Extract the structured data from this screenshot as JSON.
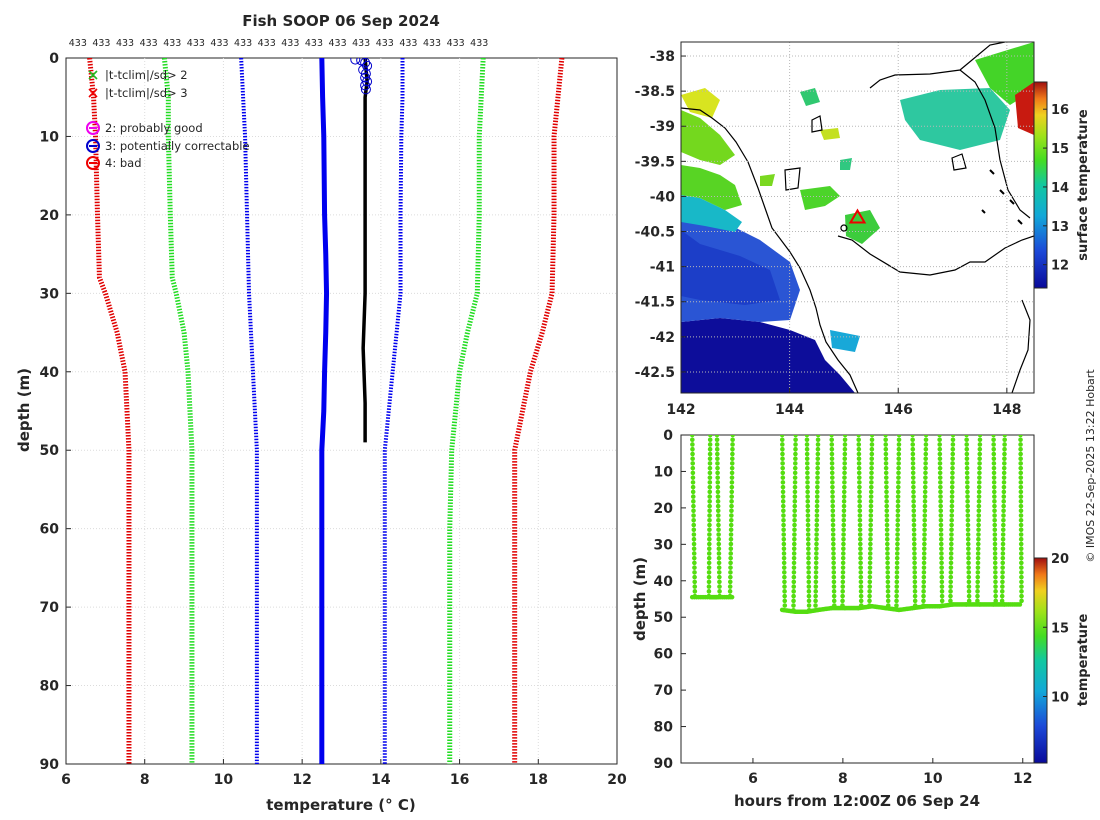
{
  "title": "Fish SOOP 06 Sep 2024",
  "credit": "© IMOS 22-Sep-2025 13:22 Hobart",
  "colors": {
    "clim_sd3": "#e00000",
    "clim_sd2": "#22dd22",
    "clim_mean": "#0000ee",
    "profile": "#000000",
    "flag_good": "#ee00ee",
    "flag_correctable": "#0000cc",
    "flag_bad": "#ee0000",
    "ocean_blank": "#ffffff",
    "land": "#ffffff",
    "track_points": "#55dd11"
  },
  "chart_data": [
    {
      "id": "profile",
      "type": "line",
      "title": "Fish SOOP 06 Sep 2024",
      "xlabel": "temperature (° C)",
      "ylabel": "depth (m)",
      "xlim": [
        6,
        20
      ],
      "ylim": [
        0,
        90
      ],
      "y_reversed": true,
      "grid": true,
      "xticks": [
        6,
        8,
        10,
        12,
        14,
        16,
        18,
        20
      ],
      "yticks": [
        0,
        10,
        20,
        30,
        40,
        50,
        60,
        70,
        80,
        90
      ],
      "top_counts": [
        "433",
        "433",
        "433",
        "433",
        "433",
        "433",
        "433",
        "433",
        "433",
        "433",
        "433",
        "433",
        "433",
        "433",
        "433",
        "433",
        "433",
        "433"
      ],
      "top_counts_x": [
        6.3,
        6.9,
        7.5,
        8.1,
        8.7,
        9.3,
        9.9,
        10.5,
        11.1,
        11.7,
        12.3,
        12.9,
        13.5,
        14.1,
        14.7,
        15.3,
        15.9,
        16.5
      ],
      "legend": {
        "position": "top-left",
        "entries": [
          {
            "label": "|t-tclim|/sd> 2",
            "marker": "x",
            "color": "#22bb22"
          },
          {
            "label": "|t-tclim|/sd> 3",
            "marker": "x",
            "color": "#ee0000"
          },
          {
            "label": "2: probably good",
            "marker": "circle",
            "color": "#ee00ee"
          },
          {
            "label": "3: potentially correctable",
            "marker": "circle",
            "color": "#0000cc"
          },
          {
            "label": "4: bad",
            "marker": "circle",
            "color": "#ee0000"
          }
        ]
      },
      "series": [
        {
          "name": "clim -3sd",
          "style": "sd3",
          "depth": [
            0,
            5,
            10,
            20,
            28,
            30,
            35,
            40,
            45,
            50,
            60,
            70,
            80,
            90
          ],
          "temp": [
            6.6,
            6.7,
            6.75,
            6.8,
            6.85,
            7.0,
            7.3,
            7.5,
            7.55,
            7.6,
            7.6,
            7.6,
            7.6,
            7.6
          ]
        },
        {
          "name": "clim -2sd",
          "style": "sd2",
          "depth": [
            0,
            5,
            10,
            20,
            28,
            30,
            35,
            40,
            45,
            50,
            60,
            70,
            80,
            90
          ],
          "temp": [
            8.5,
            8.6,
            8.6,
            8.65,
            8.7,
            8.8,
            9.0,
            9.1,
            9.15,
            9.2,
            9.2,
            9.2,
            9.2,
            9.2
          ]
        },
        {
          "name": "clim -1sd",
          "style": "mean_dots",
          "depth": [
            0,
            5,
            10,
            20,
            30,
            35,
            40,
            45,
            50,
            60,
            70,
            80,
            90
          ],
          "temp": [
            10.45,
            10.5,
            10.55,
            10.6,
            10.65,
            10.7,
            10.75,
            10.8,
            10.85,
            10.85,
            10.85,
            10.85,
            10.85
          ]
        },
        {
          "name": "clim mean",
          "style": "mean",
          "depth": [
            0,
            5,
            10,
            20,
            25,
            30,
            35,
            40,
            45,
            50,
            60,
            70,
            80,
            90
          ],
          "temp": [
            12.5,
            12.52,
            12.55,
            12.57,
            12.6,
            12.62,
            12.6,
            12.57,
            12.55,
            12.5,
            12.5,
            12.5,
            12.5,
            12.5
          ]
        },
        {
          "name": "clim +1sd",
          "style": "mean_dots",
          "depth": [
            0,
            5,
            10,
            20,
            30,
            35,
            40,
            45,
            50,
            60,
            70,
            80,
            90
          ],
          "temp": [
            14.55,
            14.55,
            14.52,
            14.5,
            14.5,
            14.4,
            14.3,
            14.2,
            14.1,
            14.1,
            14.1,
            14.1,
            14.1
          ]
        },
        {
          "name": "clim +2sd",
          "style": "sd2",
          "depth": [
            0,
            5,
            10,
            20,
            30,
            35,
            40,
            45,
            50,
            60,
            70,
            80,
            90
          ],
          "temp": [
            16.6,
            16.55,
            16.5,
            16.5,
            16.45,
            16.2,
            16.0,
            15.9,
            15.8,
            15.75,
            15.75,
            15.75,
            15.75
          ]
        },
        {
          "name": "clim +3sd",
          "style": "sd3",
          "depth": [
            0,
            5,
            10,
            20,
            30,
            35,
            40,
            45,
            50,
            60,
            70,
            80,
            90
          ],
          "temp": [
            18.6,
            18.5,
            18.4,
            18.4,
            18.35,
            18.1,
            17.8,
            17.6,
            17.4,
            17.4,
            17.4,
            17.4,
            17.4
          ]
        },
        {
          "name": "profile",
          "style": "profile",
          "depth": [
            0,
            3,
            5,
            10,
            20,
            30,
            37,
            44,
            49
          ],
          "temp": [
            13.6,
            13.65,
            13.6,
            13.6,
            13.6,
            13.6,
            13.55,
            13.6,
            13.6
          ]
        }
      ],
      "flag_circles": {
        "color_key": "flag_correctable",
        "points": [
          [
            13.35,
            0.2
          ],
          [
            13.5,
            0.3
          ],
          [
            13.6,
            0.6
          ],
          [
            13.65,
            1.0
          ],
          [
            13.55,
            1.5
          ],
          [
            13.62,
            2.0
          ],
          [
            13.6,
            2.5
          ],
          [
            13.65,
            3.0
          ],
          [
            13.6,
            3.5
          ],
          [
            13.62,
            4.0
          ]
        ]
      }
    },
    {
      "id": "map",
      "type": "heatmap",
      "xlim": [
        142,
        148.5
      ],
      "ylim": [
        -42.8,
        -37.8
      ],
      "xticks": [
        142,
        144,
        146,
        148
      ],
      "yticks": [
        -38,
        -38.5,
        -39,
        -39.5,
        -40,
        -40.5,
        -41,
        -41.5,
        -42,
        -42.5
      ],
      "colorbar": {
        "label": "surface temperature",
        "range": [
          11.4,
          16.7
        ],
        "ticks": [
          12,
          13,
          14,
          15,
          16
        ]
      },
      "marker": {
        "lon": 145.25,
        "lat": -40.3,
        "symbol": "triangle",
        "color": "#ee0000"
      },
      "marker2": {
        "lon": 145.0,
        "lat": -40.45,
        "symbol": "circle",
        "color": "#000000"
      }
    },
    {
      "id": "track",
      "type": "scatter",
      "xlabel": "hours from 12:00Z 06 Sep 24",
      "ylabel": "depth (m)",
      "xlim": [
        4.4,
        12.25
      ],
      "ylim": [
        0,
        90
      ],
      "y_reversed": true,
      "xticks": [
        6,
        8,
        10,
        12
      ],
      "yticks": [
        0,
        10,
        20,
        30,
        40,
        50,
        60,
        70,
        80,
        90
      ],
      "colorbar": {
        "label": "temperature",
        "range": [
          5.2,
          20
        ],
        "ticks": [
          10,
          15,
          20
        ]
      },
      "casts_hours": [
        4.65,
        5.05,
        5.2,
        5.55,
        6.65,
        6.95,
        7.2,
        7.45,
        7.75,
        8.05,
        8.35,
        8.65,
        8.95,
        9.25,
        9.55,
        9.85,
        10.15,
        10.45,
        10.75,
        11.05,
        11.35,
        11.6,
        11.95
      ],
      "casts_depths": [
        44.5,
        44.5,
        44.5,
        44.5,
        48.0,
        48.5,
        48.5,
        48.0,
        47.5,
        47.5,
        47.5,
        47.0,
        47.5,
        48.0,
        47.5,
        47.0,
        47.0,
        46.5,
        46.5,
        46.5,
        46.5,
        46.5,
        46.5
      ],
      "point_temp": 13.6
    }
  ]
}
